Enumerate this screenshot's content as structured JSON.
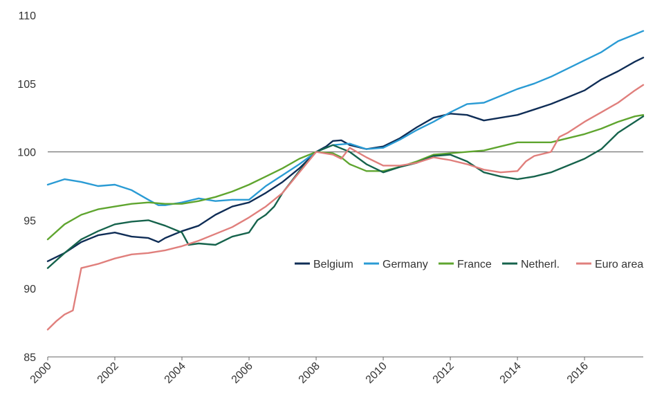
{
  "chart_data": {
    "type": "line",
    "title": "",
    "xlabel": "",
    "ylabel": "",
    "ylim": [
      85,
      110
    ],
    "xlim": [
      2000,
      2017.75
    ],
    "x_ticks": [
      "2000",
      "2002",
      "2004",
      "2006",
      "2008",
      "2010",
      "2012",
      "2014",
      "2016"
    ],
    "y_ticks": [
      "85",
      "90",
      "95",
      "100",
      "105",
      "110"
    ],
    "grid": false,
    "reference_line": 100,
    "legend_position": "lower-right",
    "series": [
      {
        "name": "Belgium",
        "color": "#0f2d56",
        "points": [
          [
            2000,
            92.0
          ],
          [
            2000.5,
            92.6
          ],
          [
            2001,
            93.4
          ],
          [
            2001.5,
            93.9
          ],
          [
            2002,
            94.1
          ],
          [
            2002.5,
            93.8
          ],
          [
            2003,
            93.7
          ],
          [
            2003.3,
            93.4
          ],
          [
            2003.5,
            93.7
          ],
          [
            2004,
            94.2
          ],
          [
            2004.5,
            94.6
          ],
          [
            2005,
            95.4
          ],
          [
            2005.5,
            96.0
          ],
          [
            2006,
            96.3
          ],
          [
            2006.5,
            97.0
          ],
          [
            2007,
            97.8
          ],
          [
            2007.5,
            98.8
          ],
          [
            2008,
            100.0
          ],
          [
            2008.3,
            100.4
          ],
          [
            2008.5,
            100.8
          ],
          [
            2008.75,
            100.85
          ],
          [
            2009,
            100.5
          ],
          [
            2009.5,
            100.2
          ],
          [
            2010,
            100.4
          ],
          [
            2010.5,
            101.0
          ],
          [
            2011,
            101.8
          ],
          [
            2011.5,
            102.5
          ],
          [
            2012,
            102.8
          ],
          [
            2012.5,
            102.7
          ],
          [
            2013,
            102.3
          ],
          [
            2013.5,
            102.5
          ],
          [
            2014,
            102.7
          ],
          [
            2014.5,
            103.1
          ],
          [
            2015,
            103.5
          ],
          [
            2015.5,
            104.0
          ],
          [
            2016,
            104.5
          ],
          [
            2016.5,
            105.3
          ],
          [
            2017,
            105.9
          ],
          [
            2017.5,
            106.6
          ],
          [
            2017.75,
            106.9
          ]
        ]
      },
      {
        "name": "Germany",
        "color": "#2a9bd4",
        "points": [
          [
            2000,
            97.6
          ],
          [
            2000.5,
            98.0
          ],
          [
            2001,
            97.8
          ],
          [
            2001.5,
            97.5
          ],
          [
            2002,
            97.6
          ],
          [
            2002.5,
            97.2
          ],
          [
            2003,
            96.5
          ],
          [
            2003.3,
            96.1
          ],
          [
            2003.5,
            96.1
          ],
          [
            2004,
            96.3
          ],
          [
            2004.5,
            96.6
          ],
          [
            2005,
            96.4
          ],
          [
            2005.5,
            96.5
          ],
          [
            2006,
            96.5
          ],
          [
            2006.5,
            97.5
          ],
          [
            2007,
            98.3
          ],
          [
            2007.5,
            99.1
          ],
          [
            2008,
            100.0
          ],
          [
            2008.5,
            100.5
          ],
          [
            2009,
            100.6
          ],
          [
            2009.5,
            100.2
          ],
          [
            2010,
            100.3
          ],
          [
            2010.5,
            100.9
          ],
          [
            2011,
            101.6
          ],
          [
            2011.5,
            102.2
          ],
          [
            2012,
            102.9
          ],
          [
            2012.5,
            103.5
          ],
          [
            2013,
            103.6
          ],
          [
            2013.5,
            104.1
          ],
          [
            2014,
            104.6
          ],
          [
            2014.5,
            105.0
          ],
          [
            2015,
            105.5
          ],
          [
            2015.5,
            106.1
          ],
          [
            2016,
            106.7
          ],
          [
            2016.5,
            107.3
          ],
          [
            2017,
            108.1
          ],
          [
            2017.5,
            108.6
          ],
          [
            2017.75,
            108.85
          ]
        ]
      },
      {
        "name": "France",
        "color": "#5fa52f",
        "points": [
          [
            2000,
            93.6
          ],
          [
            2000.5,
            94.7
          ],
          [
            2001,
            95.4
          ],
          [
            2001.5,
            95.8
          ],
          [
            2002,
            96.0
          ],
          [
            2002.5,
            96.2
          ],
          [
            2003,
            96.3
          ],
          [
            2003.5,
            96.2
          ],
          [
            2004,
            96.2
          ],
          [
            2004.5,
            96.4
          ],
          [
            2005,
            96.7
          ],
          [
            2005.5,
            97.1
          ],
          [
            2006,
            97.6
          ],
          [
            2006.5,
            98.2
          ],
          [
            2007,
            98.8
          ],
          [
            2007.5,
            99.5
          ],
          [
            2008,
            100.0
          ],
          [
            2008.5,
            99.9
          ],
          [
            2008.75,
            99.6
          ],
          [
            2009,
            99.1
          ],
          [
            2009.5,
            98.6
          ],
          [
            2010,
            98.6
          ],
          [
            2010.5,
            98.9
          ],
          [
            2011,
            99.3
          ],
          [
            2011.5,
            99.8
          ],
          [
            2012,
            99.9
          ],
          [
            2012.5,
            100.0
          ],
          [
            2013,
            100.1
          ],
          [
            2013.5,
            100.4
          ],
          [
            2014,
            100.7
          ],
          [
            2014.5,
            100.7
          ],
          [
            2015,
            100.7
          ],
          [
            2015.5,
            101.0
          ],
          [
            2016,
            101.3
          ],
          [
            2016.5,
            101.7
          ],
          [
            2017,
            102.2
          ],
          [
            2017.5,
            102.6
          ],
          [
            2017.75,
            102.7
          ]
        ]
      },
      {
        "name": "Netherl.",
        "color": "#16634c",
        "points": [
          [
            2000,
            91.5
          ],
          [
            2000.5,
            92.6
          ],
          [
            2001,
            93.6
          ],
          [
            2001.5,
            94.2
          ],
          [
            2002,
            94.7
          ],
          [
            2002.5,
            94.9
          ],
          [
            2003,
            95.0
          ],
          [
            2003.5,
            94.6
          ],
          [
            2004,
            94.1
          ],
          [
            2004.2,
            93.2
          ],
          [
            2004.5,
            93.3
          ],
          [
            2005,
            93.2
          ],
          [
            2005.5,
            93.8
          ],
          [
            2006,
            94.1
          ],
          [
            2006.25,
            95.0
          ],
          [
            2006.5,
            95.4
          ],
          [
            2006.75,
            96.0
          ],
          [
            2007,
            97.0
          ],
          [
            2007.5,
            98.6
          ],
          [
            2008,
            100.0
          ],
          [
            2008.5,
            100.5
          ],
          [
            2009,
            100.0
          ],
          [
            2009.5,
            99.1
          ],
          [
            2010,
            98.5
          ],
          [
            2010.5,
            98.9
          ],
          [
            2011,
            99.2
          ],
          [
            2011.5,
            99.7
          ],
          [
            2012,
            99.8
          ],
          [
            2012.5,
            99.3
          ],
          [
            2013,
            98.5
          ],
          [
            2013.5,
            98.2
          ],
          [
            2014,
            98.0
          ],
          [
            2014.5,
            98.2
          ],
          [
            2015,
            98.5
          ],
          [
            2015.5,
            99.0
          ],
          [
            2016,
            99.5
          ],
          [
            2016.5,
            100.2
          ],
          [
            2017,
            101.4
          ],
          [
            2017.5,
            102.2
          ],
          [
            2017.75,
            102.6
          ]
        ]
      },
      {
        "name": "Euro area",
        "color": "#e07f7c",
        "points": [
          [
            2000,
            87.0
          ],
          [
            2000.25,
            87.6
          ],
          [
            2000.5,
            88.1
          ],
          [
            2000.75,
            88.4
          ],
          [
            2001,
            91.5
          ],
          [
            2001.5,
            91.8
          ],
          [
            2002,
            92.2
          ],
          [
            2002.5,
            92.5
          ],
          [
            2003,
            92.6
          ],
          [
            2003.5,
            92.8
          ],
          [
            2004,
            93.1
          ],
          [
            2004.5,
            93.5
          ],
          [
            2005,
            94.0
          ],
          [
            2005.5,
            94.5
          ],
          [
            2006,
            95.2
          ],
          [
            2006.5,
            96.0
          ],
          [
            2007,
            97.0
          ],
          [
            2007.5,
            98.5
          ],
          [
            2008,
            100.0
          ],
          [
            2008.5,
            99.8
          ],
          [
            2008.75,
            99.5
          ],
          [
            2009,
            100.3
          ],
          [
            2009.5,
            99.6
          ],
          [
            2010,
            99.0
          ],
          [
            2010.5,
            99.0
          ],
          [
            2011,
            99.2
          ],
          [
            2011.5,
            99.6
          ],
          [
            2012,
            99.4
          ],
          [
            2012.5,
            99.1
          ],
          [
            2013,
            98.7
          ],
          [
            2013.5,
            98.5
          ],
          [
            2014,
            98.6
          ],
          [
            2014.25,
            99.3
          ],
          [
            2014.5,
            99.7
          ],
          [
            2015,
            100.0
          ],
          [
            2015.25,
            101.1
          ],
          [
            2015.5,
            101.4
          ],
          [
            2016,
            102.2
          ],
          [
            2016.5,
            102.9
          ],
          [
            2017,
            103.6
          ],
          [
            2017.5,
            104.5
          ],
          [
            2017.75,
            104.9
          ]
        ]
      }
    ]
  }
}
